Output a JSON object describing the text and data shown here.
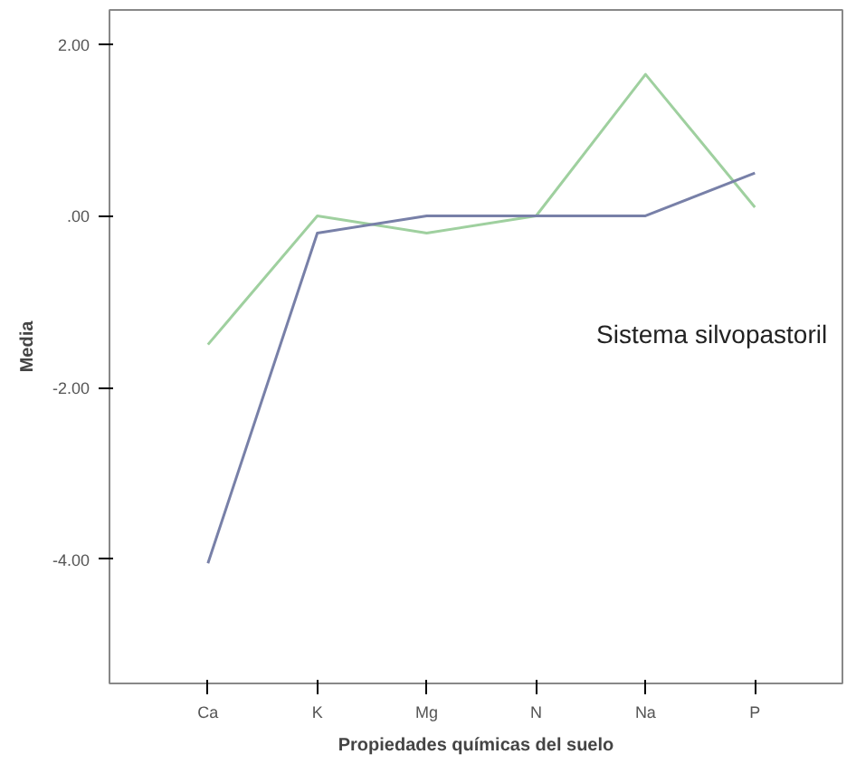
{
  "chart_data": {
    "type": "line",
    "xlabel": "Propiedades químicas del suelo",
    "ylabel": "Media",
    "categories": [
      "Ca",
      "K",
      "Mg",
      "N",
      "Na",
      "P"
    ],
    "series": [
      {
        "color": "#9fd09f",
        "values": [
          -1.5,
          0.0,
          -0.2,
          0.0,
          1.65,
          0.1
        ]
      },
      {
        "color": "#7880a8",
        "values": [
          -4.05,
          -0.2,
          0.0,
          0.0,
          0.0,
          0.5
        ]
      }
    ],
    "ylim": [
      -5.45,
      2.4
    ],
    "yticks": [
      {
        "value": 2,
        "label": "2.00"
      },
      {
        "value": 0,
        "label": ".00"
      },
      {
        "value": -2,
        "label": "-2.00"
      },
      {
        "value": -4,
        "label": "-4.00"
      }
    ],
    "grid": false,
    "legend_title": "Sistema silvopastoril",
    "marker": "none",
    "line_style": "solid"
  }
}
